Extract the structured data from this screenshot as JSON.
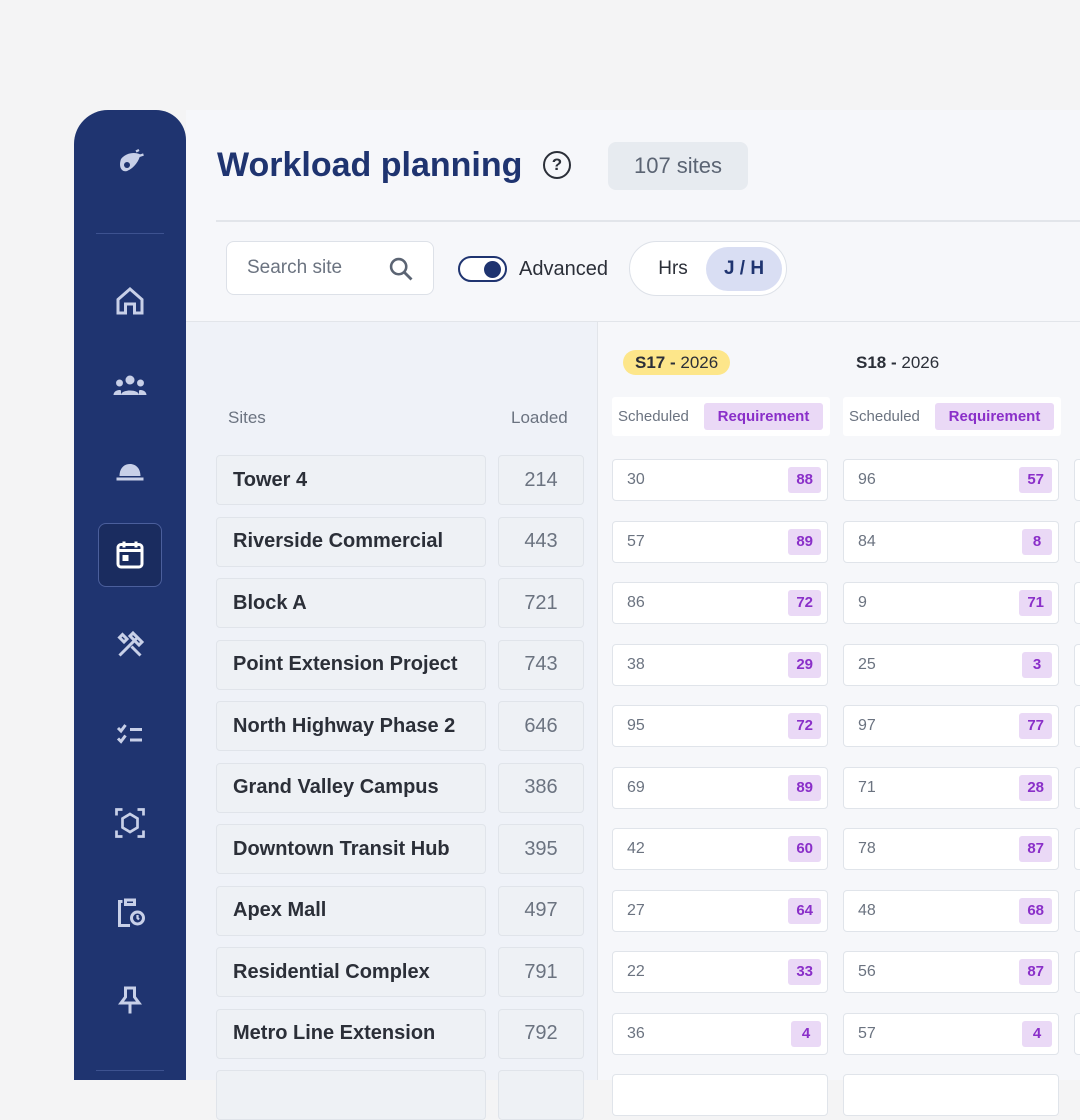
{
  "header": {
    "title": "Workload planning",
    "badge": "107 sites"
  },
  "toolbar": {
    "search_placeholder": "Search site",
    "toggle_label": "Advanced",
    "units": [
      "Hrs",
      "J / H"
    ]
  },
  "table": {
    "columns": [
      "Sites",
      "Loaded"
    ],
    "weeks": [
      {
        "code": "S17 -",
        "year": "2026"
      },
      {
        "code": "S18 -",
        "year": "2026"
      }
    ],
    "subheaders": [
      "Scheduled",
      "Requirement"
    ],
    "rows": [
      {
        "site": "Tower 4",
        "loaded": 214,
        "weeks": [
          [
            30,
            88
          ],
          [
            96,
            57
          ]
        ]
      },
      {
        "site": "Riverside Commercial",
        "loaded": 443,
        "weeks": [
          [
            57,
            89
          ],
          [
            84,
            8
          ]
        ]
      },
      {
        "site": "Block A",
        "loaded": 721,
        "weeks": [
          [
            86,
            72
          ],
          [
            9,
            71
          ]
        ]
      },
      {
        "site": "Point Extension Project",
        "loaded": 743,
        "weeks": [
          [
            38,
            29
          ],
          [
            25,
            3
          ]
        ]
      },
      {
        "site": "North Highway Phase 2",
        "loaded": 646,
        "weeks": [
          [
            95,
            72
          ],
          [
            97,
            77
          ]
        ]
      },
      {
        "site": "Grand Valley Campus",
        "loaded": 386,
        "weeks": [
          [
            69,
            89
          ],
          [
            71,
            28
          ]
        ]
      },
      {
        "site": "Downtown Transit Hub",
        "loaded": 395,
        "weeks": [
          [
            42,
            60
          ],
          [
            78,
            87
          ]
        ]
      },
      {
        "site": "Apex Mall",
        "loaded": 497,
        "weeks": [
          [
            27,
            64
          ],
          [
            48,
            68
          ]
        ]
      },
      {
        "site": "Residential Complex",
        "loaded": 791,
        "weeks": [
          [
            22,
            33
          ],
          [
            56,
            87
          ]
        ]
      },
      {
        "site": "Metro Line Extension",
        "loaded": 792,
        "weeks": [
          [
            36,
            4
          ],
          [
            57,
            4
          ]
        ]
      }
    ]
  }
}
